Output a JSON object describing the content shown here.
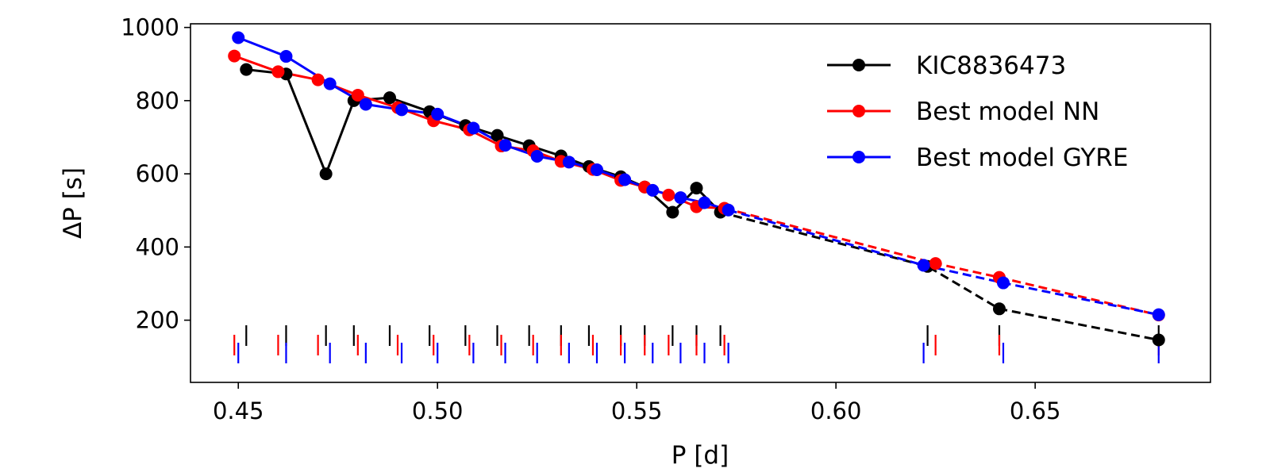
{
  "chart_data": {
    "type": "line",
    "title": "",
    "xlabel": "P [d]",
    "ylabel": "ΔP [s]",
    "xlim": [
      0.438,
      0.694
    ],
    "ylim": [
      30,
      1010
    ],
    "xticks": [
      0.45,
      0.5,
      0.55,
      0.6,
      0.65
    ],
    "xtick_labels": [
      "0.45",
      "0.50",
      "0.55",
      "0.60",
      "0.65"
    ],
    "yticks": [
      200,
      400,
      600,
      800,
      1000
    ],
    "ytick_labels": [
      "200",
      "400",
      "600",
      "800",
      "1000"
    ],
    "legend_position": "upper-right",
    "solid_until_x": 0.573,
    "series": [
      {
        "name": "KIC8836473",
        "color": "#000000",
        "x": [
          0.452,
          0.462,
          0.472,
          0.479,
          0.488,
          0.498,
          0.507,
          0.515,
          0.523,
          0.531,
          0.538,
          0.546,
          0.552,
          0.559,
          0.565,
          0.571,
          0.623,
          0.641,
          0.681
        ],
        "y": [
          885,
          873,
          600,
          800,
          808,
          770,
          732,
          705,
          677,
          649,
          620,
          592,
          564,
          495,
          561,
          495,
          347,
          231,
          146
        ],
        "marker_offset": 82,
        "marker_height": 26
      },
      {
        "name": "Best model NN",
        "color": "#ff0000",
        "x": [
          0.449,
          0.46,
          0.47,
          0.48,
          0.49,
          0.499,
          0.508,
          0.516,
          0.524,
          0.531,
          0.539,
          0.546,
          0.552,
          0.558,
          0.565,
          0.572,
          0.625,
          0.641,
          0.681
        ],
        "y": [
          922,
          879,
          857,
          815,
          781,
          745,
          720,
          676,
          663,
          634,
          612,
          582,
          564,
          542,
          510,
          506,
          355,
          317,
          214
        ],
        "marker_offset": 70,
        "marker_height": 26
      },
      {
        "name": "Best model GYRE",
        "color": "#0000ff",
        "x": [
          0.45,
          0.462,
          0.473,
          0.482,
          0.491,
          0.5,
          0.509,
          0.517,
          0.525,
          0.533,
          0.54,
          0.547,
          0.554,
          0.561,
          0.567,
          0.573,
          0.622,
          0.642,
          0.681
        ],
        "y": [
          972,
          921,
          846,
          790,
          775,
          763,
          725,
          678,
          648,
          632,
          611,
          584,
          555,
          535,
          521,
          501,
          350,
          302,
          215
        ],
        "marker_offset": 60,
        "marker_height": 26
      }
    ]
  }
}
